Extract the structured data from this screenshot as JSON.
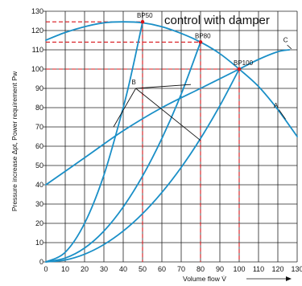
{
  "chart_data": {
    "type": "line",
    "title": "control with damper",
    "xlabel": "Volume flow V̇",
    "ylabel": "Pressure increase Δpt, Power requirement Pw",
    "xlim": [
      0,
      130
    ],
    "ylim": [
      0,
      130
    ],
    "x_ticks": [
      "0",
      "10",
      "20",
      "30",
      "40",
      "50",
      "60",
      "70",
      "80",
      "90",
      "100",
      "110",
      "120",
      "130"
    ],
    "y_ticks": [
      "0",
      "10",
      "20",
      "30",
      "40",
      "50",
      "60",
      "70",
      "80",
      "90",
      "100",
      "110",
      "120",
      "130"
    ],
    "grid": true,
    "colors": {
      "curve": "#1a8fc7",
      "guide": "#d7141a",
      "grid": "#222222",
      "leader": "#111111"
    },
    "series": [
      {
        "label": "A",
        "points": [
          [
            0,
            115
          ],
          [
            10,
            119
          ],
          [
            20,
            122
          ],
          [
            30,
            124
          ],
          [
            40,
            124.5
          ],
          [
            50,
            124
          ],
          [
            60,
            122
          ],
          [
            70,
            118.5
          ],
          [
            80,
            114
          ],
          [
            90,
            108
          ],
          [
            100,
            100
          ],
          [
            110,
            91
          ],
          [
            120,
            79
          ],
          [
            130,
            65
          ]
        ]
      },
      {
        "label": "C",
        "points": [
          [
            0,
            40
          ],
          [
            20,
            54
          ],
          [
            40,
            68
          ],
          [
            60,
            80
          ],
          [
            80,
            90
          ],
          [
            100,
            100
          ],
          [
            110,
            105
          ],
          [
            120,
            109
          ],
          [
            126,
            110
          ]
        ]
      },
      {
        "label": "B",
        "points": [
          [
            0,
            0
          ],
          [
            10,
            5
          ],
          [
            20,
            20
          ],
          [
            30,
            45
          ],
          [
            40,
            80
          ],
          [
            45,
            101
          ],
          [
            50,
            124.5
          ]
        ]
      },
      {
        "label": "B",
        "points": [
          [
            0,
            0
          ],
          [
            10,
            2
          ],
          [
            20,
            7.2
          ],
          [
            30,
            16
          ],
          [
            40,
            28.5
          ],
          [
            50,
            44.5
          ],
          [
            60,
            64
          ],
          [
            70,
            87
          ],
          [
            80,
            114
          ]
        ]
      },
      {
        "label": "B",
        "points": [
          [
            0,
            0
          ],
          [
            10,
            1
          ],
          [
            20,
            4
          ],
          [
            30,
            9
          ],
          [
            40,
            16
          ],
          [
            50,
            25
          ],
          [
            60,
            36
          ],
          [
            70,
            49
          ],
          [
            80,
            64
          ],
          [
            90,
            81
          ],
          [
            100,
            100
          ]
        ]
      }
    ],
    "operating_points": [
      {
        "label": "BP50",
        "x": 50,
        "y": 124.5
      },
      {
        "label": "BP80",
        "x": 80,
        "y": 114
      },
      {
        "label": "BP100",
        "x": 100,
        "y": 100
      }
    ],
    "curve_labels": [
      {
        "text": "A",
        "x": 119,
        "y": 80
      },
      {
        "text": "C",
        "x": 124,
        "y": 114
      },
      {
        "text": "B",
        "x": 45.5,
        "y": 92
      }
    ],
    "leader_lines": [
      {
        "from": [
          46.5,
          90
        ],
        "to": [
          35,
          70
        ]
      },
      {
        "from": [
          46.5,
          90
        ],
        "to": [
          75,
          92
        ]
      },
      {
        "from": [
          46.5,
          90
        ],
        "to": [
          80,
          63
        ]
      }
    ]
  }
}
